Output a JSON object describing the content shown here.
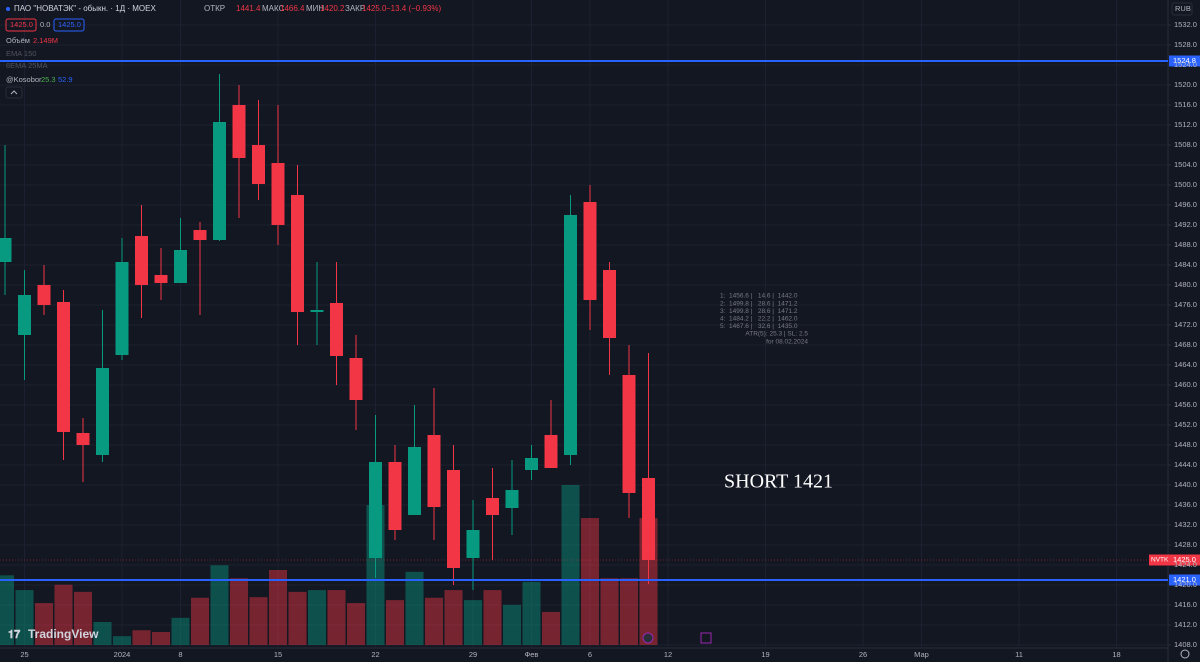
{
  "header": {
    "ticker_name": "ПАО \"НОВАТЭК\" - обыкн. · 1Д · MOEX",
    "open_label": "ОТКР",
    "open": "1441.4",
    "high_label": "МАКС",
    "high": "1466.4",
    "low_label": "МИН",
    "low": "1420.2",
    "close_label": "ЗАКР",
    "close": "1425.0",
    "change": "−13.4 (−0.93%)",
    "bid": "1425.0",
    "spread": "0.0",
    "ask": "1425.0",
    "volume_name": "Объём",
    "volume": "2.149M",
    "ema_label": "EMA 150",
    "ema2_label": "6EMA 25MA",
    "indicator_name": "@Kosobor",
    "indicator_v1": "25.3",
    "indicator_v2": "52.9",
    "currency": "RUB",
    "symbol": "NVTK",
    "brand": "TradingView"
  },
  "table": {
    "rows": [
      "1:  1456.6 |   14.6 |  1442.0",
      "2:  1499.8 |   28.6 |  1471.2",
      "3:  1499.8 |   28.6 |  1471.2",
      "4:  1484.2 |   22.2 |  1462.0",
      "5:  1467.6 |   32.6 |  1435.0",
      "ATR(5): 25.3 | SL: 2.5",
      "for 08.02.2024"
    ]
  },
  "annotation": "SHORT 1421",
  "chart_data": {
    "type": "candlestick",
    "up_color": "#089981",
    "down_color": "#f23645",
    "grid": true,
    "categories": [
      null,
      "25",
      null,
      null,
      null,
      null,
      "2024",
      null,
      null,
      "8",
      null,
      null,
      null,
      null,
      "15",
      null,
      null,
      null,
      null,
      "22",
      null,
      null,
      null,
      null,
      "29",
      null,
      null,
      "Фев",
      null,
      null,
      "6",
      null,
      null,
      null,
      "12",
      null,
      null,
      null,
      null,
      "19",
      null,
      null,
      null,
      null,
      "26",
      null,
      null,
      "Мар",
      null,
      null,
      null,
      null,
      "11",
      null,
      null,
      null,
      null,
      "18"
    ],
    "open": [
      1484.6,
      1470,
      1480,
      1476.6,
      1450.4,
      1446,
      1466,
      1489.8,
      1482,
      1480.4,
      1491,
      1489,
      1516,
      1508,
      1504.4,
      1498,
      1474.6,
      1476.4,
      1465.4,
      1425.4,
      1444.6,
      1434,
      1450,
      1443,
      1425.4,
      1437.4,
      1435.4,
      1443,
      1450,
      1446,
      1496.6,
      1483,
      1462,
      1441.4,
      null,
      null,
      null,
      null,
      null,
      null,
      null,
      null,
      null,
      null,
      null,
      null,
      null,
      null,
      null,
      null,
      null,
      null,
      null,
      null,
      null,
      null,
      null,
      null
    ],
    "high": [
      1508,
      1483,
      1484,
      1479,
      1453.4,
      1475,
      1489.4,
      1496,
      1487.4,
      1493.4,
      1492.6,
      1522.2,
      1520,
      1517,
      1516,
      1504,
      1484.6,
      1484.6,
      1470,
      1454,
      1448,
      1456,
      1459.4,
      1448,
      1437,
      1443.4,
      1445,
      1448,
      1457,
      1498,
      1500,
      1484.6,
      1468,
      1466.4,
      null,
      null,
      null,
      null,
      null,
      null,
      null,
      null,
      null,
      null,
      null,
      null,
      null,
      null,
      null,
      null,
      null,
      null,
      null,
      null,
      null,
      null,
      null,
      null
    ],
    "low": [
      1478,
      1461,
      1474,
      1445,
      1440.6,
      1444.6,
      1465,
      1473.4,
      1477,
      1480.4,
      1474,
      1488.8,
      1493.4,
      1497,
      1488,
      1468,
      1468,
      1460,
      1451,
      1421.4,
      1429,
      1434,
      1429,
      1420,
      1419,
      1425,
      1430,
      1441,
      1443.4,
      1444,
      1471,
      1462,
      1433.4,
      1420.2,
      null,
      null,
      null,
      null,
      null,
      null,
      null,
      null,
      null,
      null,
      null,
      null,
      null,
      null,
      null,
      null,
      null,
      null,
      null,
      null,
      null,
      null,
      null,
      null
    ],
    "close": [
      1489.4,
      1478,
      1476,
      1450.6,
      1448,
      1463.4,
      1484.6,
      1480,
      1480.4,
      1487,
      1489,
      1512.6,
      1505.4,
      1500.2,
      1492,
      1474.6,
      1475,
      1465.8,
      1457,
      1444.6,
      1431,
      1447.6,
      1435.6,
      1423.4,
      1431,
      1434,
      1439,
      1445.4,
      1443.4,
      1494,
      1477,
      1469.4,
      1438.4,
      1425,
      null,
      null,
      null,
      null,
      null,
      null,
      null,
      null,
      null,
      null,
      null,
      null,
      null,
      null,
      null,
      null,
      null,
      null,
      null,
      null,
      null,
      null,
      null,
      null
    ],
    "volume": [
      1.18,
      0.93,
      0.71,
      1.02,
      0.9,
      0.39,
      0.15,
      0.25,
      0.22,
      0.46,
      0.8,
      1.35,
      1.13,
      0.81,
      1.27,
      0.9,
      0.93,
      0.93,
      0.71,
      2.37,
      0.76,
      1.24,
      0.8,
      0.93,
      0.76,
      0.93,
      0.68,
      1.07,
      0.56,
      2.71,
      2.15,
      1.13,
      1.13,
      2.149,
      null,
      null,
      null,
      null,
      null,
      null,
      null,
      null,
      null,
      null,
      null,
      null,
      null,
      null,
      null,
      null,
      null,
      null,
      null,
      null,
      null,
      null,
      null,
      null
    ],
    "ylim": [
      1408,
      1532
    ],
    "yticks": [
      {
        "value": 1408,
        "label": "1408.0"
      },
      {
        "value": 1412,
        "label": "1412.0"
      },
      {
        "value": 1416,
        "label": "1416.0"
      },
      {
        "value": 1420,
        "label": "1420.0"
      },
      {
        "value": 1424,
        "label": "1424.0"
      },
      {
        "value": 1428,
        "label": "1428.0"
      },
      {
        "value": 1432,
        "label": "1432.0"
      },
      {
        "value": 1436,
        "label": "1436.0"
      },
      {
        "value": 1440,
        "label": "1440.0"
      },
      {
        "value": 1444,
        "label": "1444.0"
      },
      {
        "value": 1448,
        "label": "1448.0"
      },
      {
        "value": 1452,
        "label": "1452.0"
      },
      {
        "value": 1456,
        "label": "1456.0"
      },
      {
        "value": 1460,
        "label": "1460.0"
      },
      {
        "value": 1464,
        "label": "1464.0"
      },
      {
        "value": 1468,
        "label": "1468.0"
      },
      {
        "value": 1472,
        "label": "1472.0"
      },
      {
        "value": 1476,
        "label": "1476.0"
      },
      {
        "value": 1480,
        "label": "1480.0"
      },
      {
        "value": 1484,
        "label": "1484.0"
      },
      {
        "value": 1488,
        "label": "1488.0"
      },
      {
        "value": 1492,
        "label": "1492.0"
      },
      {
        "value": 1496,
        "label": "1496.0"
      },
      {
        "value": 1500,
        "label": "1500.0"
      },
      {
        "value": 1504,
        "label": "1504.0"
      },
      {
        "value": 1508,
        "label": "1508.0"
      },
      {
        "value": 1512,
        "label": "1512.0"
      },
      {
        "value": 1516,
        "label": "1516.0"
      },
      {
        "value": 1520,
        "label": "1520.0"
      },
      {
        "value": 1524,
        "label": "1524.0"
      },
      {
        "value": 1528,
        "label": "1528.0"
      },
      {
        "value": 1532,
        "label": "1532.0"
      }
    ],
    "hlines": [
      {
        "value": 1524.8,
        "label": "1524.8",
        "color": "#2962ff"
      },
      {
        "value": 1421,
        "label": "1421.0",
        "color": "#2962ff"
      }
    ],
    "last_price": {
      "value": 1425,
      "label": "1425.0"
    }
  }
}
